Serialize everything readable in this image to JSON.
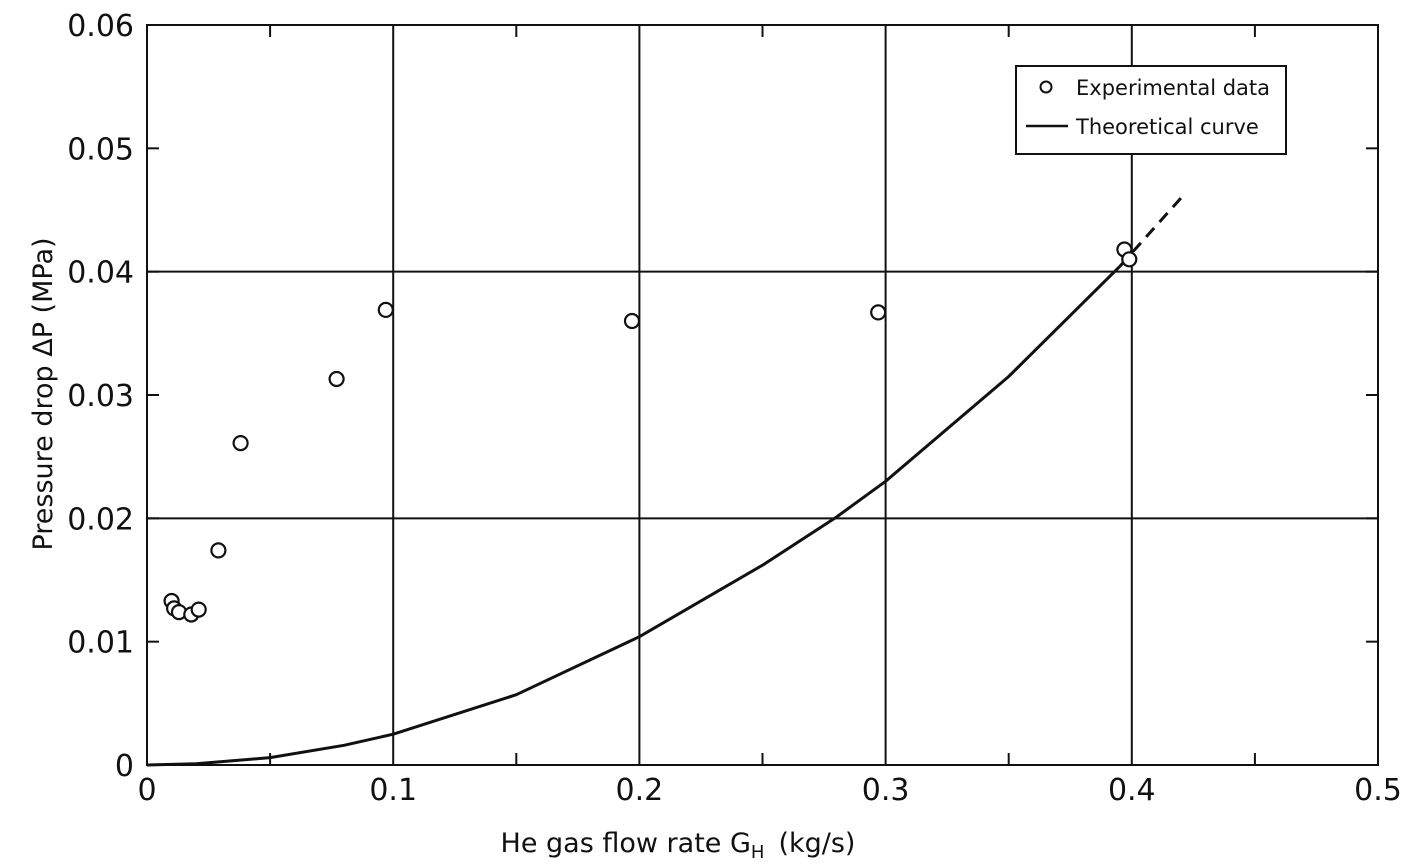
{
  "chart_data": {
    "type": "scatter",
    "title": "",
    "xlabel": "He  gas  flow  rate  G",
    "xlabel_sub": "H",
    "xlabel_unit": "(kg/s)",
    "ylabel": "Pressure  drop  ΔP  (MPa)",
    "xlim": [
      0,
      0.5
    ],
    "ylim": [
      0,
      0.06
    ],
    "x_ticks": [
      "0",
      "0.1",
      "0.2",
      "0.3",
      "0.4",
      "0.5"
    ],
    "y_ticks": [
      "0",
      "0.01",
      "0.02",
      "0.03",
      "0.04",
      "0.05",
      "0.06"
    ],
    "grid": "major",
    "legend_position": "top-right",
    "series": [
      {
        "name": "Experimental data",
        "kind": "scatter",
        "marker": "open-circle",
        "points": [
          {
            "x": 0.01,
            "y": 0.0133
          },
          {
            "x": 0.011,
            "y": 0.0127
          },
          {
            "x": 0.013,
            "y": 0.0124
          },
          {
            "x": 0.018,
            "y": 0.0122
          },
          {
            "x": 0.021,
            "y": 0.0126
          },
          {
            "x": 0.029,
            "y": 0.0174
          },
          {
            "x": 0.038,
            "y": 0.0261
          },
          {
            "x": 0.077,
            "y": 0.0313
          },
          {
            "x": 0.097,
            "y": 0.0369
          },
          {
            "x": 0.197,
            "y": 0.036
          },
          {
            "x": 0.297,
            "y": 0.0367
          },
          {
            "x": 0.397,
            "y": 0.0418
          },
          {
            "x": 0.399,
            "y": 0.041
          }
        ]
      },
      {
        "name": "Theoretical curve",
        "kind": "line",
        "color": "#111111",
        "points": [
          {
            "x": 0.0,
            "y": 0.0
          },
          {
            "x": 0.02,
            "y": 0.0001
          },
          {
            "x": 0.05,
            "y": 0.0006
          },
          {
            "x": 0.08,
            "y": 0.0016
          },
          {
            "x": 0.1,
            "y": 0.0025
          },
          {
            "x": 0.15,
            "y": 0.0057
          },
          {
            "x": 0.2,
            "y": 0.0104
          },
          {
            "x": 0.25,
            "y": 0.0162
          },
          {
            "x": 0.28,
            "y": 0.0201
          },
          {
            "x": 0.3,
            "y": 0.023
          },
          {
            "x": 0.35,
            "y": 0.0315
          },
          {
            "x": 0.395,
            "y": 0.0404
          }
        ],
        "extension_dashed": [
          {
            "x": 0.395,
            "y": 0.0404
          },
          {
            "x": 0.421,
            "y": 0.0462
          }
        ]
      }
    ]
  }
}
